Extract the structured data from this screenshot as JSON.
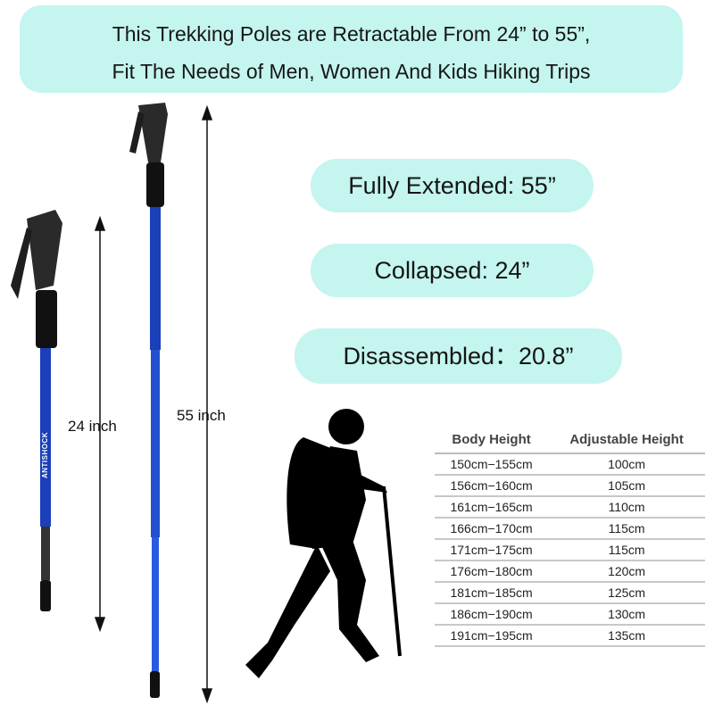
{
  "banner": {
    "line1": "This Trekking Poles are Retractable From 24” to 55”,",
    "line2": "Fit The Needs of Men, Women And Kids Hiking Trips"
  },
  "specs": {
    "extended": "Fully Extended: 55”",
    "collapsed": "Collapsed: 24”",
    "disassembled": "Disassembled：20.8”"
  },
  "labels": {
    "short": "24 inch",
    "long": "55 inch"
  },
  "pole_brand": "ANTISHOCK",
  "colors": {
    "accent_bg": "#c4f5ee",
    "pole_blue": "#1a3fb8"
  },
  "table": {
    "headers": [
      "Body Height",
      "Adjustable Height"
    ],
    "rows": [
      [
        "150cm−155cm",
        "100cm"
      ],
      [
        "156cm−160cm",
        "105cm"
      ],
      [
        "161cm−165cm",
        "110cm"
      ],
      [
        "166cm−170cm",
        "115cm"
      ],
      [
        "171cm−175cm",
        "115cm"
      ],
      [
        "176cm−180cm",
        "120cm"
      ],
      [
        "181cm−185cm",
        "125cm"
      ],
      [
        "186cm−190cm",
        "130cm"
      ],
      [
        "191cm−195cm",
        "135cm"
      ]
    ]
  }
}
